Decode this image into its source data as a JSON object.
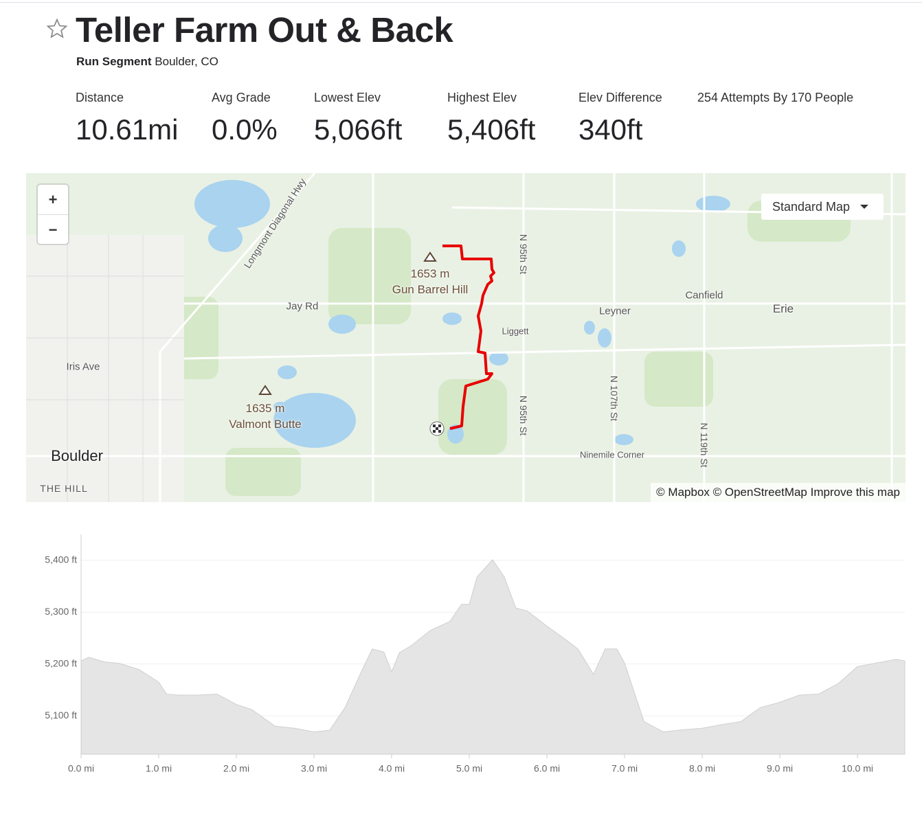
{
  "header": {
    "title": "Teller Farm Out & Back",
    "segment_type": "Run Segment",
    "location": "Boulder, CO"
  },
  "stats": [
    {
      "label": "Distance",
      "value": "10.61mi"
    },
    {
      "label": "Avg Grade",
      "value": "0.0%"
    },
    {
      "label": "Lowest Elev",
      "value": "5,066ft"
    },
    {
      "label": "Highest Elev",
      "value": "5,406ft"
    },
    {
      "label": "Elev Difference",
      "value": "340ft"
    }
  ],
  "attempts": "254 Attempts By 170 People",
  "map": {
    "zoom_in": "+",
    "zoom_out": "−",
    "style_button": "Standard Map",
    "attribution": "© Mapbox © OpenStreetMap Improve this map",
    "labels": [
      "Longmont Diagonal Hwy",
      "1653 m",
      "Gun Barrel Hill",
      "Jay Rd",
      "Iris Ave",
      "1635 m",
      "Valmont Butte",
      "Boulder",
      "THE HILL",
      "N 95th St",
      "N 95th St",
      "Liggett",
      "Leyner",
      "Canfield",
      "Erie",
      "N 107th St",
      "N 119th St",
      "Ninemile Corner"
    ]
  },
  "chart_data": {
    "type": "area",
    "color": "#e5e5e5",
    "x": [
      0,
      0.1,
      0.3,
      0.5,
      0.75,
      1.0,
      1.1,
      1.25,
      1.5,
      1.75,
      2.0,
      2.2,
      2.5,
      2.75,
      3.0,
      3.2,
      3.4,
      3.6,
      3.75,
      3.9,
      4.0,
      4.1,
      4.25,
      4.5,
      4.75,
      4.9,
      5.0,
      5.1,
      5.3,
      5.45,
      5.6,
      5.75,
      6.0,
      6.25,
      6.4,
      6.6,
      6.75,
      6.9,
      7.0,
      7.25,
      7.5,
      7.75,
      8.0,
      8.25,
      8.5,
      8.75,
      9.0,
      9.25,
      9.5,
      9.75,
      10.0,
      10.25,
      10.5,
      10.61
    ],
    "values": [
      5206,
      5213,
      5204,
      5201,
      5189,
      5165,
      5142,
      5140,
      5140,
      5142,
      5122,
      5112,
      5080,
      5076,
      5069,
      5072,
      5116,
      5182,
      5229,
      5223,
      5185,
      5222,
      5235,
      5265,
      5282,
      5315,
      5315,
      5368,
      5401,
      5368,
      5308,
      5302,
      5273,
      5246,
      5229,
      5180,
      5229,
      5229,
      5202,
      5089,
      5069,
      5073,
      5076,
      5083,
      5089,
      5116,
      5126,
      5140,
      5142,
      5162,
      5195,
      5202,
      5209,
      5206
    ],
    "xlim": [
      0,
      10.61
    ],
    "ylim": [
      5026,
      5450
    ],
    "xticks": [
      {
        "value": 0,
        "label": "0.0 mi"
      },
      {
        "value": 1,
        "label": "1.0 mi"
      },
      {
        "value": 2,
        "label": "2.0 mi"
      },
      {
        "value": 3,
        "label": "3.0 mi"
      },
      {
        "value": 4,
        "label": "4.0 mi"
      },
      {
        "value": 5,
        "label": "5.0 mi"
      },
      {
        "value": 6,
        "label": "6.0 mi"
      },
      {
        "value": 7,
        "label": "7.0 mi"
      },
      {
        "value": 8,
        "label": "8.0 mi"
      },
      {
        "value": 9,
        "label": "9.0 mi"
      },
      {
        "value": 10,
        "label": "10.0 mi"
      }
    ],
    "yticks": [
      {
        "value": 5100,
        "label": "5,100 ft"
      },
      {
        "value": 5200,
        "label": "5,200 ft"
      },
      {
        "value": 5300,
        "label": "5,300 ft"
      },
      {
        "value": 5400,
        "label": "5,400 ft"
      }
    ],
    "grid": true
  }
}
